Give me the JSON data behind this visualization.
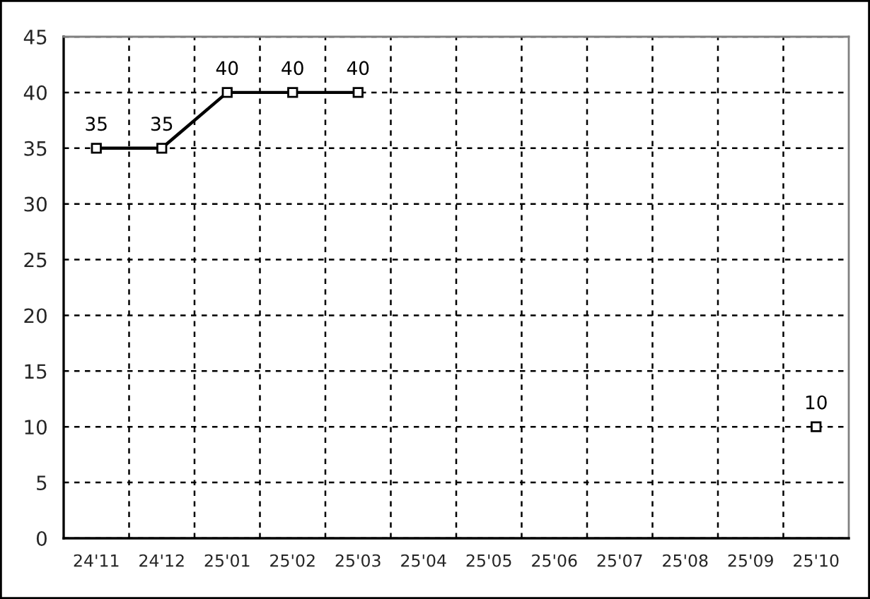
{
  "chart_data": {
    "type": "line",
    "categories": [
      "24'11",
      "24'12",
      "25'01",
      "25'02",
      "25'03",
      "25'04",
      "25'05",
      "25'06",
      "25'07",
      "25'08",
      "25'09",
      "25'10"
    ],
    "series": [
      {
        "color": "#000000",
        "values": [
          35,
          35,
          40,
          40,
          40,
          null,
          null,
          null,
          null,
          null,
          null,
          10
        ]
      }
    ],
    "ylim": [
      0,
      45
    ],
    "yticks": [
      0,
      5,
      10,
      15,
      20,
      25,
      30,
      35,
      40,
      45
    ],
    "grid": true,
    "marker": "square",
    "line_style": "solid",
    "data_labels": true
  }
}
